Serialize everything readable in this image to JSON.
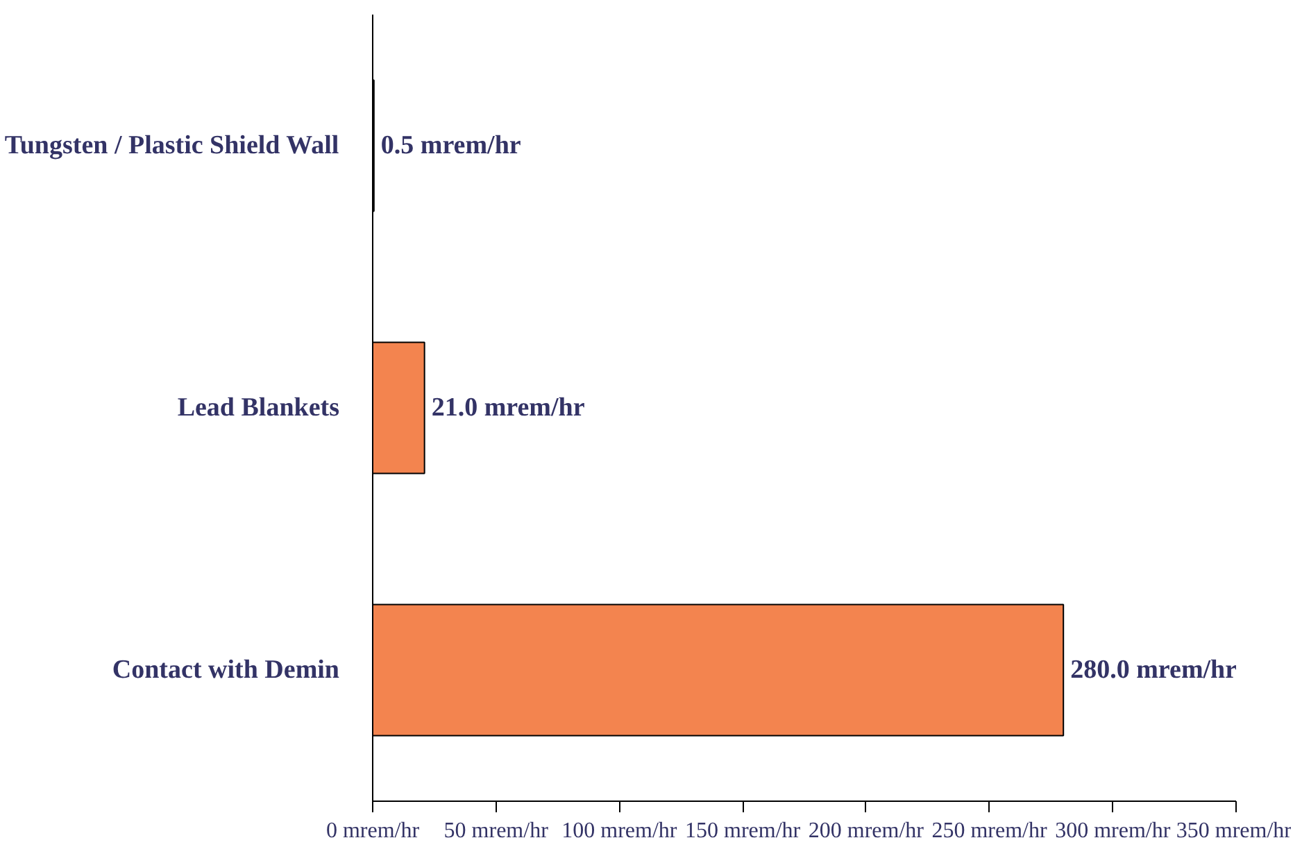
{
  "chart_data": {
    "type": "bar",
    "orientation": "horizontal",
    "categories": [
      "Tungsten / Plastic Shield Wall",
      "Lead Blankets",
      "Contact with Demin"
    ],
    "values": [
      0.5,
      21.0,
      280.0
    ],
    "value_labels": [
      "0.5 mrem/hr",
      "21.0 mrem/hr",
      "280.0 mrem/hr"
    ],
    "color": "#f3844f",
    "xlim": [
      0,
      350
    ],
    "xticks": [
      {
        "value": 0,
        "label": "0 mrem/hr"
      },
      {
        "value": 50,
        "label": "50 mrem/hr"
      },
      {
        "value": 100,
        "label": "100 mrem/hr"
      },
      {
        "value": 150,
        "label": "150 mrem/hr"
      },
      {
        "value": 200,
        "label": "200 mrem/hr"
      },
      {
        "value": 250,
        "label": "250 mrem/hr"
      },
      {
        "value": 300,
        "label": "300 mrem/hr"
      },
      {
        "value": 350,
        "label": "350 mrem/hr"
      }
    ],
    "grid": false
  }
}
